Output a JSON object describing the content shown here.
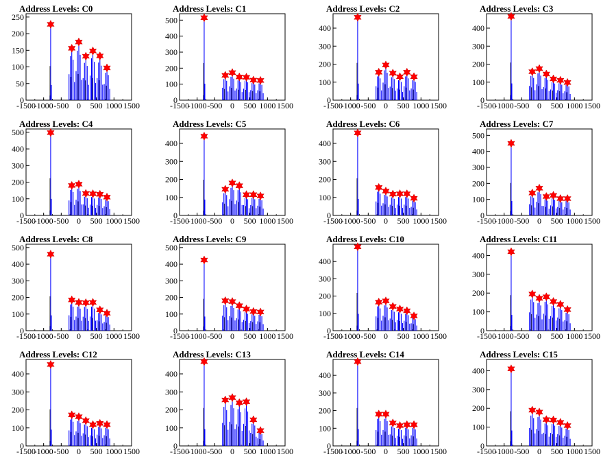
{
  "colors": {
    "line": "#0000ff",
    "marker": "#ff0000",
    "frame": "#000000",
    "inner": "#000000"
  },
  "chart_data": [
    {
      "type": "bar",
      "title": "Address Levels: C0",
      "xlim": [
        -1500,
        1500
      ],
      "xticks": [
        -1500,
        -1000,
        -500,
        0,
        500,
        1000,
        1500
      ],
      "yticks": [
        0,
        50,
        100,
        150,
        200,
        250
      ],
      "ylim": [
        0,
        260
      ],
      "peaks": [
        {
          "x": -800,
          "y": 228
        },
        {
          "x": -200,
          "y": 156
        },
        {
          "x": 0,
          "y": 175
        },
        {
          "x": 200,
          "y": 132
        },
        {
          "x": 400,
          "y": 148
        },
        {
          "x": 600,
          "y": 133
        },
        {
          "x": 800,
          "y": 97
        }
      ]
    },
    {
      "type": "bar",
      "title": "Address Levels: C1",
      "xlim": [
        -1500,
        1500
      ],
      "xticks": [
        -1500,
        -1000,
        -500,
        0,
        500,
        1000,
        1500
      ],
      "yticks": [
        0,
        100,
        200,
        300,
        400,
        500
      ],
      "ylim": [
        0,
        540
      ],
      "peaks": [
        {
          "x": -800,
          "y": 515
        },
        {
          "x": -200,
          "y": 155
        },
        {
          "x": 0,
          "y": 172
        },
        {
          "x": 200,
          "y": 145
        },
        {
          "x": 400,
          "y": 143
        },
        {
          "x": 600,
          "y": 125
        },
        {
          "x": 800,
          "y": 123
        }
      ]
    },
    {
      "type": "bar",
      "title": "Address Levels: C2",
      "xlim": [
        -1500,
        1500
      ],
      "xticks": [
        -1500,
        -1000,
        -500,
        0,
        500,
        1000,
        1500
      ],
      "yticks": [
        0,
        100,
        200,
        300,
        400
      ],
      "ylim": [
        0,
        480
      ],
      "peaks": [
        {
          "x": -800,
          "y": 460
        },
        {
          "x": -200,
          "y": 155
        },
        {
          "x": 0,
          "y": 195
        },
        {
          "x": 200,
          "y": 150
        },
        {
          "x": 400,
          "y": 130
        },
        {
          "x": 600,
          "y": 155
        },
        {
          "x": 800,
          "y": 130
        }
      ]
    },
    {
      "type": "bar",
      "title": "Address Levels: C3",
      "xlim": [
        -1500,
        1500
      ],
      "xticks": [
        -1500,
        -1000,
        -500,
        0,
        500,
        1000,
        1500
      ],
      "yticks": [
        0,
        100,
        200,
        300,
        400
      ],
      "ylim": [
        0,
        480
      ],
      "peaks": [
        {
          "x": -800,
          "y": 465
        },
        {
          "x": -200,
          "y": 158
        },
        {
          "x": 0,
          "y": 175
        },
        {
          "x": 200,
          "y": 145
        },
        {
          "x": 400,
          "y": 118
        },
        {
          "x": 600,
          "y": 110
        },
        {
          "x": 800,
          "y": 98
        }
      ]
    },
    {
      "type": "bar",
      "title": "Address Levels: C4",
      "xlim": [
        -1500,
        1500
      ],
      "xticks": [
        -1500,
        -1000,
        -500,
        0,
        500,
        1000,
        1500
      ],
      "yticks": [
        0,
        100,
        200,
        300,
        400,
        500
      ],
      "ylim": [
        0,
        520
      ],
      "peaks": [
        {
          "x": -800,
          "y": 498
        },
        {
          "x": -200,
          "y": 180
        },
        {
          "x": 0,
          "y": 188
        },
        {
          "x": 200,
          "y": 132
        },
        {
          "x": 400,
          "y": 130
        },
        {
          "x": 600,
          "y": 127
        },
        {
          "x": 800,
          "y": 110
        }
      ]
    },
    {
      "type": "bar",
      "title": "Address Levels: C5",
      "xlim": [
        -1500,
        1500
      ],
      "xticks": [
        -1500,
        -1000,
        -500,
        0,
        500,
        1000,
        1500
      ],
      "yticks": [
        0,
        100,
        200,
        300,
        400
      ],
      "ylim": [
        0,
        480
      ],
      "peaks": [
        {
          "x": -800,
          "y": 440
        },
        {
          "x": -200,
          "y": 145
        },
        {
          "x": 0,
          "y": 180
        },
        {
          "x": 200,
          "y": 165
        },
        {
          "x": 400,
          "y": 115
        },
        {
          "x": 600,
          "y": 115
        },
        {
          "x": 800,
          "y": 108
        }
      ]
    },
    {
      "type": "bar",
      "title": "Address Levels: C6",
      "xlim": [
        -1500,
        1500
      ],
      "xticks": [
        -1500,
        -1000,
        -500,
        0,
        500,
        1000,
        1500
      ],
      "yticks": [
        0,
        100,
        200,
        300,
        400
      ],
      "ylim": [
        0,
        480
      ],
      "peaks": [
        {
          "x": -800,
          "y": 458
        },
        {
          "x": -200,
          "y": 155
        },
        {
          "x": 0,
          "y": 135
        },
        {
          "x": 200,
          "y": 118
        },
        {
          "x": 400,
          "y": 120
        },
        {
          "x": 600,
          "y": 120
        },
        {
          "x": 800,
          "y": 95
        }
      ]
    },
    {
      "type": "bar",
      "title": "Address Levels: C7",
      "xlim": [
        -1500,
        1500
      ],
      "xticks": [
        -1500,
        -1000,
        -500,
        0,
        500,
        1000,
        1500
      ],
      "yticks": [
        0,
        100,
        200,
        300,
        400,
        500
      ],
      "ylim": [
        0,
        540
      ],
      "peaks": [
        {
          "x": -800,
          "y": 450
        },
        {
          "x": -200,
          "y": 140
        },
        {
          "x": 0,
          "y": 170
        },
        {
          "x": 200,
          "y": 118
        },
        {
          "x": 400,
          "y": 125
        },
        {
          "x": 600,
          "y": 105
        },
        {
          "x": 800,
          "y": 105
        }
      ]
    },
    {
      "type": "bar",
      "title": "Address Levels: C8",
      "xlim": [
        -1500,
        1500
      ],
      "xticks": [
        -1500,
        -1000,
        -500,
        0,
        500,
        1000,
        1500
      ],
      "yticks": [
        0,
        100,
        200,
        300,
        400,
        500
      ],
      "ylim": [
        0,
        520
      ],
      "peaks": [
        {
          "x": -800,
          "y": 460
        },
        {
          "x": -200,
          "y": 185
        },
        {
          "x": 0,
          "y": 170
        },
        {
          "x": 200,
          "y": 168
        },
        {
          "x": 400,
          "y": 170
        },
        {
          "x": 600,
          "y": 125
        },
        {
          "x": 800,
          "y": 105
        }
      ]
    },
    {
      "type": "bar",
      "title": "Address Levels: C9",
      "xlim": [
        -1500,
        1500
      ],
      "xticks": [
        -1500,
        -1000,
        -500,
        0,
        500,
        1000,
        1500
      ],
      "yticks": [
        0,
        100,
        200,
        300,
        400,
        500
      ],
      "ylim": [
        0,
        520
      ],
      "peaks": [
        {
          "x": -800,
          "y": 425
        },
        {
          "x": -200,
          "y": 180
        },
        {
          "x": 0,
          "y": 175
        },
        {
          "x": 200,
          "y": 150
        },
        {
          "x": 400,
          "y": 130
        },
        {
          "x": 600,
          "y": 115
        },
        {
          "x": 800,
          "y": 112
        }
      ]
    },
    {
      "type": "bar",
      "title": "Address Levels: C10",
      "xlim": [
        -1500,
        1500
      ],
      "xticks": [
        -1500,
        -1000,
        -500,
        0,
        500,
        1000,
        1500
      ],
      "yticks": [
        0,
        100,
        200,
        300,
        400
      ],
      "ylim": [
        0,
        500
      ],
      "peaks": [
        {
          "x": -800,
          "y": 485
        },
        {
          "x": -200,
          "y": 165
        },
        {
          "x": 0,
          "y": 172
        },
        {
          "x": 200,
          "y": 140
        },
        {
          "x": 400,
          "y": 125
        },
        {
          "x": 600,
          "y": 115
        },
        {
          "x": 800,
          "y": 85
        }
      ]
    },
    {
      "type": "bar",
      "title": "Address Levels: C11",
      "xlim": [
        -1500,
        1500
      ],
      "xticks": [
        -1500,
        -1000,
        -500,
        0,
        500,
        1000,
        1500
      ],
      "yticks": [
        0,
        100,
        200,
        300,
        400
      ],
      "ylim": [
        0,
        460
      ],
      "peaks": [
        {
          "x": -800,
          "y": 420
        },
        {
          "x": -200,
          "y": 195
        },
        {
          "x": 0,
          "y": 172
        },
        {
          "x": 200,
          "y": 180
        },
        {
          "x": 400,
          "y": 155
        },
        {
          "x": 600,
          "y": 140
        },
        {
          "x": 800,
          "y": 112
        }
      ]
    },
    {
      "type": "bar",
      "title": "Address Levels: C12",
      "xlim": [
        -1500,
        1500
      ],
      "xticks": [
        -1500,
        -1000,
        -500,
        0,
        500,
        1000,
        1500
      ],
      "yticks": [
        0,
        100,
        200,
        300,
        400
      ],
      "ylim": [
        0,
        480
      ],
      "peaks": [
        {
          "x": -800,
          "y": 452
        },
        {
          "x": -200,
          "y": 172
        },
        {
          "x": 0,
          "y": 162
        },
        {
          "x": 200,
          "y": 140
        },
        {
          "x": 400,
          "y": 118
        },
        {
          "x": 600,
          "y": 125
        },
        {
          "x": 800,
          "y": 118
        }
      ]
    },
    {
      "type": "bar",
      "title": "Address Levels: C13",
      "xlim": [
        -1500,
        1500
      ],
      "xticks": [
        -1500,
        -1000,
        -500,
        0,
        500,
        1000,
        1500
      ],
      "yticks": [
        0,
        100,
        200,
        300,
        400
      ],
      "ylim": [
        0,
        480
      ],
      "peaks": [
        {
          "x": -800,
          "y": 468
        },
        {
          "x": -200,
          "y": 255
        },
        {
          "x": 0,
          "y": 268
        },
        {
          "x": 200,
          "y": 240
        },
        {
          "x": 400,
          "y": 245
        },
        {
          "x": 600,
          "y": 145
        },
        {
          "x": 800,
          "y": 85
        }
      ]
    },
    {
      "type": "bar",
      "title": "Address Levels: C14",
      "xlim": [
        -1500,
        1500
      ],
      "xticks": [
        -1500,
        -1000,
        -500,
        0,
        500,
        1000,
        1500
      ],
      "yticks": [
        0,
        100,
        200,
        300,
        400
      ],
      "ylim": [
        0,
        490
      ],
      "peaks": [
        {
          "x": -800,
          "y": 478
        },
        {
          "x": -200,
          "y": 180
        },
        {
          "x": 0,
          "y": 180
        },
        {
          "x": 200,
          "y": 130
        },
        {
          "x": 400,
          "y": 115
        },
        {
          "x": 600,
          "y": 120
        },
        {
          "x": 800,
          "y": 120
        }
      ]
    },
    {
      "type": "bar",
      "title": "Address Levels: C15",
      "xlim": [
        -1500,
        1500
      ],
      "xticks": [
        -1500,
        -1000,
        -500,
        0,
        500,
        1000,
        1500
      ],
      "yticks": [
        0,
        100,
        200,
        300,
        400
      ],
      "ylim": [
        0,
        460
      ],
      "peaks": [
        {
          "x": -800,
          "y": 410
        },
        {
          "x": -200,
          "y": 190
        },
        {
          "x": 0,
          "y": 180
        },
        {
          "x": 200,
          "y": 140
        },
        {
          "x": 400,
          "y": 138
        },
        {
          "x": 600,
          "y": 125
        },
        {
          "x": 800,
          "y": 108
        }
      ]
    }
  ]
}
